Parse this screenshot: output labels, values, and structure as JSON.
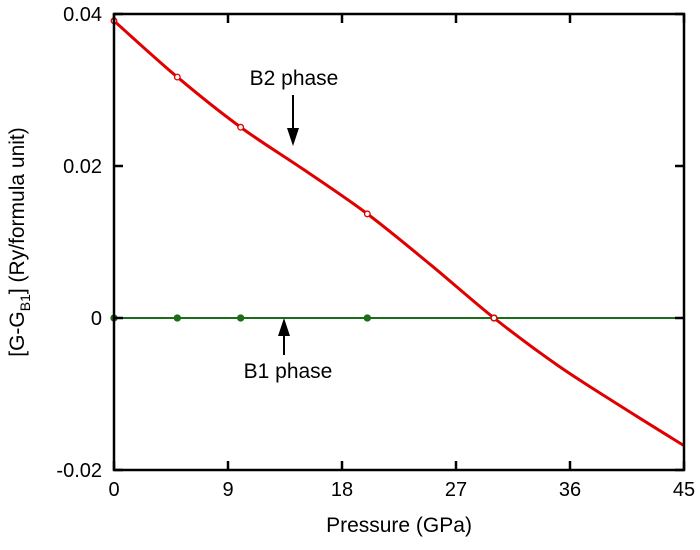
{
  "chart_data": {
    "type": "line",
    "xlabel": "Pressure (GPa)",
    "ylabel": "[G-G",
    "ylabel_sub": "B1",
    "ylabel_rest": "] (Ry/formula unit)",
    "xlim": [
      0,
      45
    ],
    "ylim": [
      -0.02,
      0.04
    ],
    "xticks": [
      "0",
      "9",
      "18",
      "27",
      "36",
      "45"
    ],
    "yticks": [
      "-0.02",
      "0",
      "0.02",
      "0.04"
    ],
    "grid": false,
    "series": [
      {
        "name": "B2 phase",
        "color": "#e00000",
        "marker": "open-circle",
        "x": [
          0,
          5,
          10,
          20,
          30
        ],
        "y": [
          0.0391,
          0.0317,
          0.0251,
          0.0137,
          0.0
        ],
        "curve_x": [
          0,
          5,
          10,
          15,
          20,
          25,
          30,
          35,
          40,
          45
        ],
        "curve_y": [
          0.0391,
          0.0317,
          0.0251,
          0.0195,
          0.0137,
          0.007,
          0.0,
          -0.0062,
          -0.0116,
          -0.0168
        ]
      },
      {
        "name": "B1 phase",
        "color": "#1a6e1a",
        "marker": "filled-circle",
        "x": [
          0,
          5,
          10,
          20,
          30
        ],
        "y": [
          0,
          0,
          0,
          0,
          0
        ],
        "curve_x": [
          0,
          45
        ],
        "curve_y": [
          0,
          0
        ]
      }
    ],
    "annotations": [
      {
        "text": "B2 phase",
        "arrow_to": [
          14,
          0.02
        ]
      },
      {
        "text": "B1 phase",
        "arrow_to": [
          13.4,
          0
        ]
      }
    ]
  }
}
